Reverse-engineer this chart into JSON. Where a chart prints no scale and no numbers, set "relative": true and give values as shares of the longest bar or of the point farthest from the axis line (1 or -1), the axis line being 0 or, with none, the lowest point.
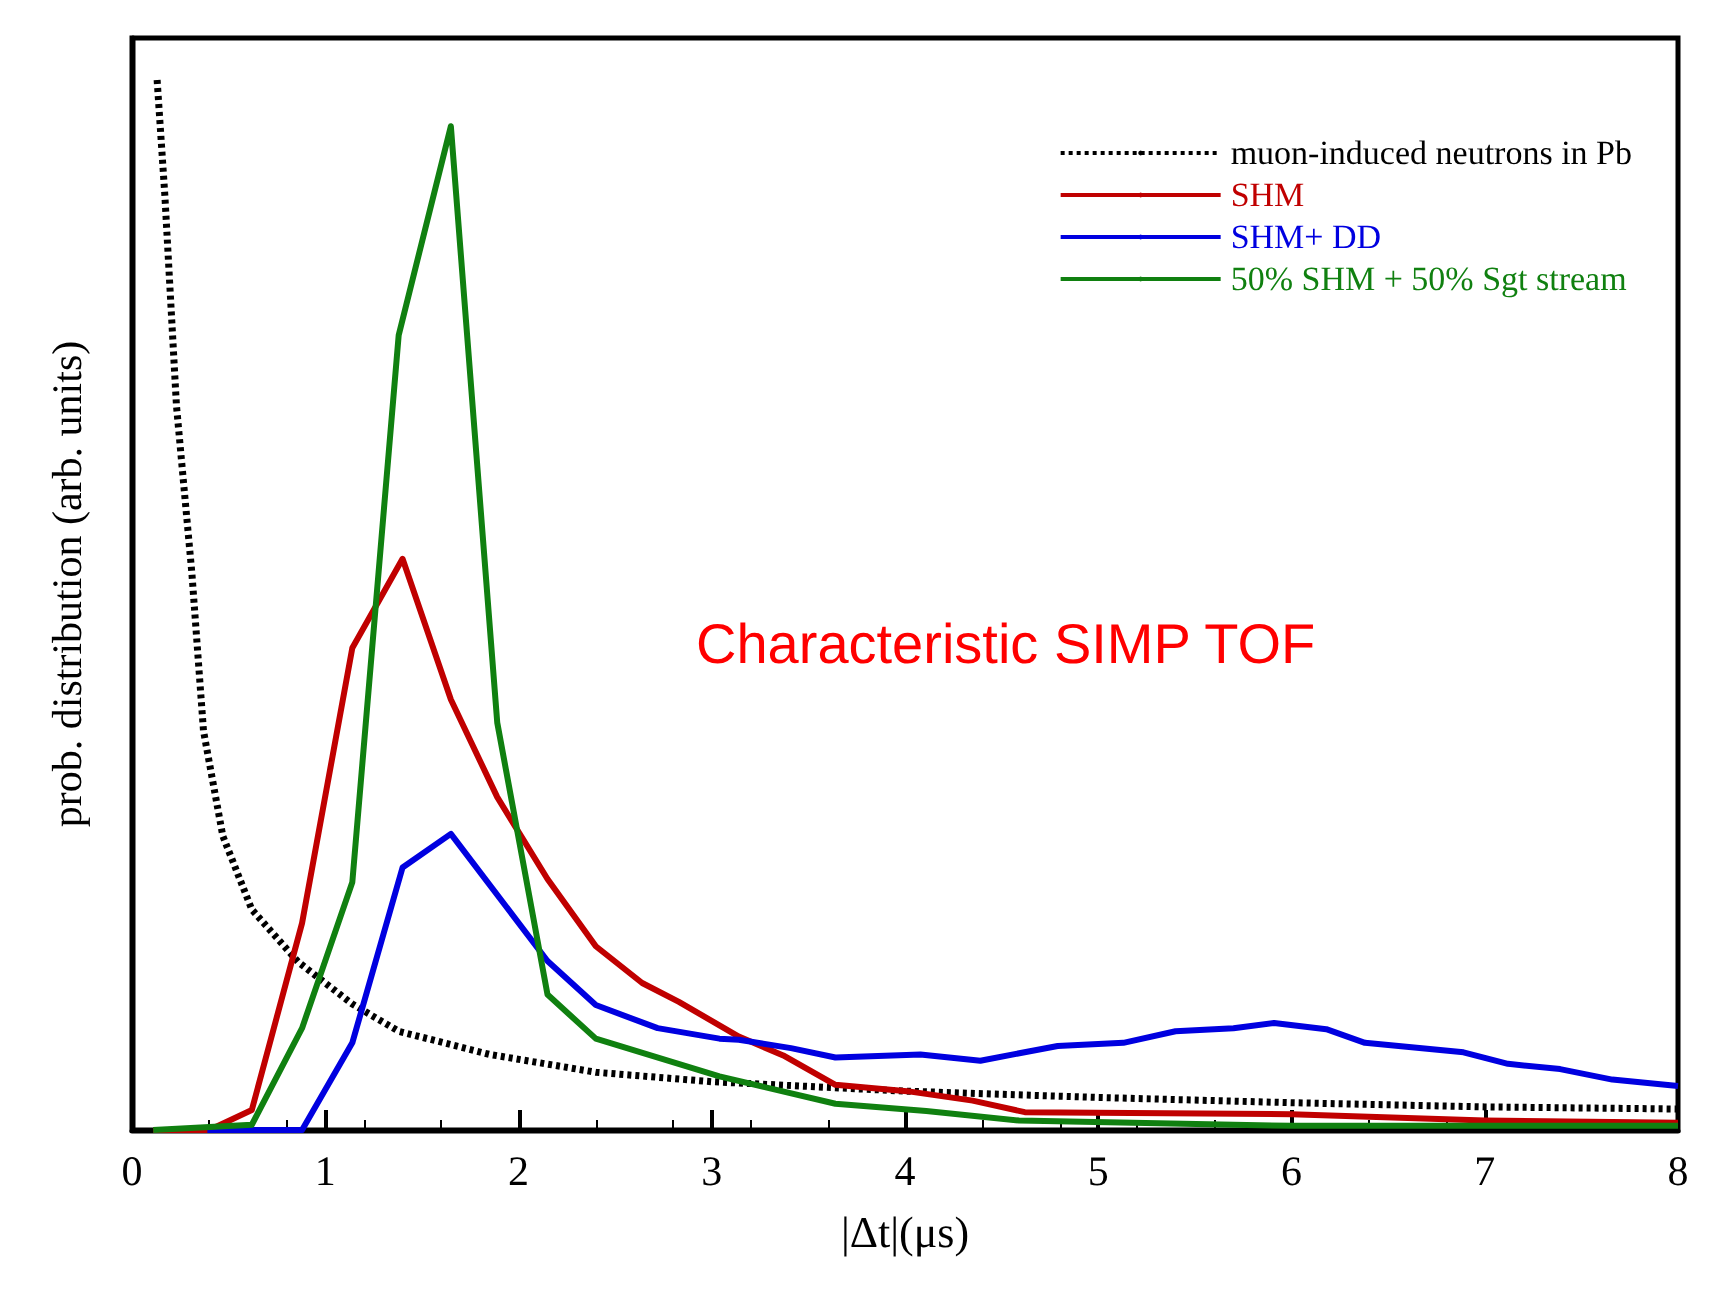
{
  "chart_data": {
    "type": "line",
    "xlabel": "|Δt|(μs)",
    "ylabel": "prob. distribution (arb. units)",
    "relative": true,
    "xlim": [
      0,
      8
    ],
    "xticks": [
      0,
      1,
      2,
      3,
      4,
      5,
      6,
      7,
      8
    ],
    "grid": false,
    "legend": "top right",
    "marker": "none",
    "annotations": [
      "Characteristic SIMP TOF"
    ],
    "series": [
      {
        "name": "muon-induced neutrons in Pb",
        "color": "#000000",
        "line_style": "dotted",
        "x": [
          0.13,
          0.17,
          0.23,
          0.31,
          0.37,
          0.47,
          0.62,
          0.86,
          1.14,
          1.38,
          1.85,
          2.4,
          3.0,
          4.0,
          5.0,
          6.0,
          7.0,
          8.0
        ],
        "values": [
          1.0,
          0.89,
          0.69,
          0.53,
          0.38,
          0.28,
          0.21,
          0.16,
          0.12,
          0.094,
          0.072,
          0.055,
          0.046,
          0.037,
          0.031,
          0.026,
          0.022,
          0.02
        ]
      },
      {
        "name": "SHM",
        "color": "#c00000",
        "line_style": "solid",
        "x": [
          0.11,
          0.4,
          0.62,
          0.88,
          1.14,
          1.4,
          1.65,
          1.89,
          2.15,
          2.4,
          2.64,
          2.83,
          3.14,
          3.37,
          3.64,
          4.01,
          4.35,
          4.62,
          6.0,
          7.0,
          8.0
        ],
        "values": [
          0,
          0,
          0.019,
          0.197,
          0.459,
          0.544,
          0.41,
          0.317,
          0.239,
          0.175,
          0.14,
          0.122,
          0.089,
          0.071,
          0.043,
          0.037,
          0.028,
          0.017,
          0.015,
          0.009,
          0.007
        ]
      },
      {
        "name": "SHM+ DD",
        "color": "#0000e0",
        "line_style": "solid",
        "x": [
          0.39,
          0.88,
          1.14,
          1.4,
          1.65,
          2.15,
          2.4,
          2.72,
          3.04,
          3.14,
          3.41,
          3.64,
          4.08,
          4.39,
          4.79,
          5.13,
          5.4,
          5.7,
          5.91,
          6.18,
          6.38,
          6.89,
          7.12,
          7.39,
          7.66,
          8.0
        ],
        "values": [
          0,
          0,
          0.083,
          0.25,
          0.282,
          0.161,
          0.119,
          0.097,
          0.087,
          0.086,
          0.078,
          0.069,
          0.072,
          0.066,
          0.08,
          0.083,
          0.094,
          0.097,
          0.102,
          0.096,
          0.083,
          0.074,
          0.063,
          0.058,
          0.048,
          0.042
        ]
      },
      {
        "name": "50% SHM + 50% Sgt stream",
        "color": "#108010",
        "line_style": "solid",
        "x": [
          0.11,
          0.62,
          0.88,
          1.14,
          1.38,
          1.65,
          1.89,
          2.15,
          2.4,
          3.04,
          3.64,
          4.11,
          4.59,
          6.0,
          8.0
        ],
        "values": [
          0,
          0.005,
          0.097,
          0.236,
          0.757,
          0.956,
          0.388,
          0.129,
          0.087,
          0.051,
          0.025,
          0.018,
          0.009,
          0.004,
          0.004
        ]
      }
    ]
  }
}
